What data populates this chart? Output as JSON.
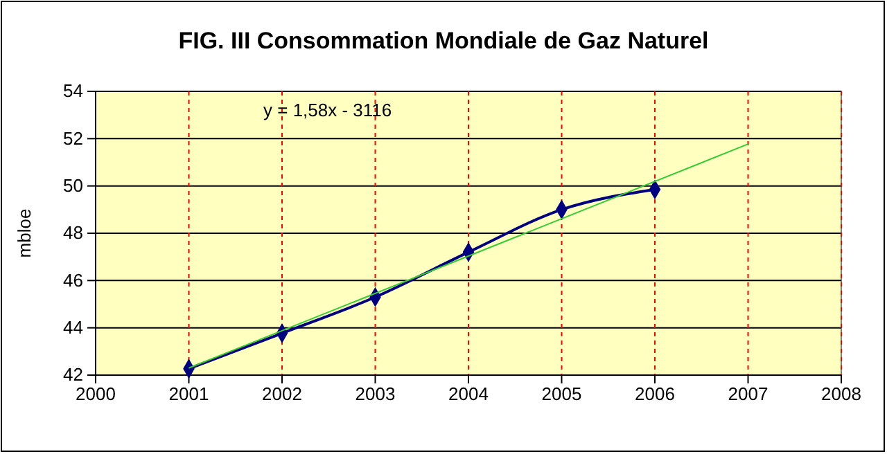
{
  "chart_data": {
    "type": "line",
    "title": "FIG.  III  Consommation Mondiale de Gaz Naturel",
    "ylabel": "mbloe",
    "x": [
      2001,
      2002,
      2003,
      2004,
      2005,
      2006
    ],
    "series": [
      {
        "color": "#000080",
        "values": [
          42.27,
          43.77,
          45.3,
          47.2,
          49.0,
          49.85
        ],
        "marker": "diamond"
      },
      {
        "type": "line",
        "color": "#33cc33",
        "x": [
          2001,
          2007
        ],
        "values": [
          42.3,
          51.77
        ],
        "marker": "none"
      }
    ],
    "annotations": [
      "y = 1,58x - 3116"
    ],
    "xlim": [
      2000,
      2008
    ],
    "xticks": [
      2000,
      2001,
      2002,
      2003,
      2004,
      2005,
      2006,
      2007,
      2008
    ],
    "ylim": [
      42,
      54
    ],
    "yticks": [
      42,
      44,
      46,
      48,
      50,
      52,
      54
    ],
    "grid": true
  }
}
